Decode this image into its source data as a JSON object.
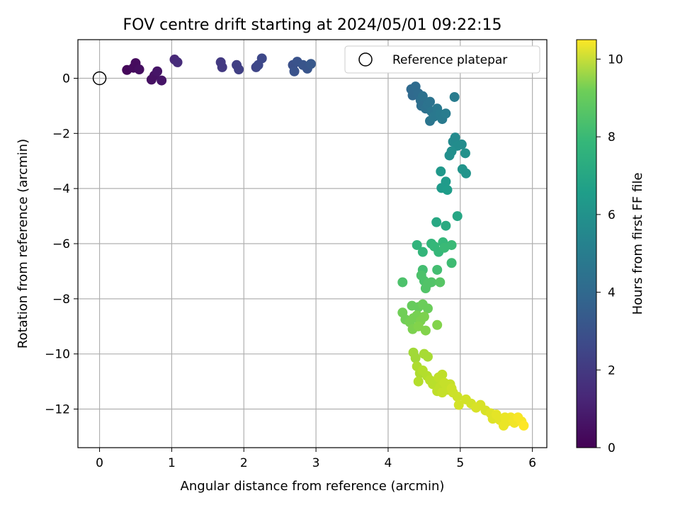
{
  "chart_data": {
    "type": "scatter",
    "title": "FOV centre drift starting at 2024/05/01 09:22:15",
    "xlabel": "Angular distance from reference (arcmin)",
    "ylabel": "Rotation from reference (arcmin)",
    "xlim": [
      -0.3,
      6.2
    ],
    "ylim": [
      -13.4,
      1.4
    ],
    "x_ticks": [
      0,
      1,
      2,
      3,
      4,
      5,
      6
    ],
    "y_ticks": [
      0,
      -2,
      -4,
      -6,
      -8,
      -10,
      -12
    ],
    "x_tick_labels": [
      "0",
      "1",
      "2",
      "3",
      "4",
      "5",
      "6"
    ],
    "y_tick_labels": [
      "0",
      "−2",
      "−4",
      "−6",
      "−8",
      "−10",
      "−12"
    ],
    "grid": true,
    "legend": {
      "placement": "top-right",
      "entries": [
        "Reference platepar"
      ]
    },
    "reference_point": {
      "x": 0,
      "y": 0
    },
    "colorbar": {
      "label": "Hours from first FF file",
      "range": [
        0,
        10.5
      ],
      "ticks": [
        0,
        2,
        4,
        6,
        8,
        10
      ],
      "colormap": "viridis"
    },
    "points": [
      {
        "x": 0.38,
        "y": 0.3,
        "c": 0.2
      },
      {
        "x": 0.47,
        "y": 0.38,
        "c": 0.3
      },
      {
        "x": 0.5,
        "y": 0.55,
        "c": 0.3
      },
      {
        "x": 0.55,
        "y": 0.32,
        "c": 0.4
      },
      {
        "x": 0.72,
        "y": -0.05,
        "c": 0.5
      },
      {
        "x": 0.76,
        "y": 0.1,
        "c": 0.5
      },
      {
        "x": 0.8,
        "y": 0.25,
        "c": 0.6
      },
      {
        "x": 0.86,
        "y": -0.08,
        "c": 0.6
      },
      {
        "x": 1.04,
        "y": 0.68,
        "c": 1.2
      },
      {
        "x": 1.08,
        "y": 0.58,
        "c": 1.3
      },
      {
        "x": 1.68,
        "y": 0.58,
        "c": 1.8
      },
      {
        "x": 1.7,
        "y": 0.4,
        "c": 1.8
      },
      {
        "x": 1.9,
        "y": 0.48,
        "c": 2.0
      },
      {
        "x": 1.93,
        "y": 0.32,
        "c": 2.0
      },
      {
        "x": 2.17,
        "y": 0.4,
        "c": 2.2
      },
      {
        "x": 2.2,
        "y": 0.48,
        "c": 2.3
      },
      {
        "x": 2.25,
        "y": 0.72,
        "c": 2.3
      },
      {
        "x": 2.68,
        "y": 0.48,
        "c": 2.6
      },
      {
        "x": 2.7,
        "y": 0.25,
        "c": 2.7
      },
      {
        "x": 2.74,
        "y": 0.6,
        "c": 2.7
      },
      {
        "x": 2.82,
        "y": 0.48,
        "c": 2.8
      },
      {
        "x": 2.88,
        "y": 0.35,
        "c": 2.8
      },
      {
        "x": 2.93,
        "y": 0.52,
        "c": 2.9
      },
      {
        "x": 4.32,
        "y": -0.4,
        "c": 3.6
      },
      {
        "x": 4.34,
        "y": -0.62,
        "c": 3.6
      },
      {
        "x": 4.38,
        "y": -0.3,
        "c": 3.7
      },
      {
        "x": 4.42,
        "y": -0.55,
        "c": 3.7
      },
      {
        "x": 4.45,
        "y": -0.8,
        "c": 3.8
      },
      {
        "x": 4.46,
        "y": -1.0,
        "c": 3.8
      },
      {
        "x": 4.48,
        "y": -0.65,
        "c": 3.9
      },
      {
        "x": 4.52,
        "y": -1.1,
        "c": 3.9
      },
      {
        "x": 4.55,
        "y": -0.95,
        "c": 4.0
      },
      {
        "x": 4.58,
        "y": -0.85,
        "c": 4.0
      },
      {
        "x": 4.6,
        "y": -1.2,
        "c": 4.1
      },
      {
        "x": 4.58,
        "y": -1.55,
        "c": 4.1
      },
      {
        "x": 4.63,
        "y": -1.4,
        "c": 4.2
      },
      {
        "x": 4.68,
        "y": -1.1,
        "c": 4.2
      },
      {
        "x": 4.72,
        "y": -1.3,
        "c": 4.3
      },
      {
        "x": 4.75,
        "y": -1.48,
        "c": 4.3
      },
      {
        "x": 4.8,
        "y": -1.28,
        "c": 4.4
      },
      {
        "x": 4.92,
        "y": -0.68,
        "c": 4.4
      },
      {
        "x": 4.9,
        "y": -2.3,
        "c": 5.0
      },
      {
        "x": 4.93,
        "y": -2.15,
        "c": 5.0
      },
      {
        "x": 4.96,
        "y": -2.45,
        "c": 5.1
      },
      {
        "x": 5.02,
        "y": -2.4,
        "c": 5.1
      },
      {
        "x": 4.88,
        "y": -2.65,
        "c": 5.2
      },
      {
        "x": 4.85,
        "y": -2.8,
        "c": 5.2
      },
      {
        "x": 5.07,
        "y": -2.72,
        "c": 5.3
      },
      {
        "x": 5.03,
        "y": -3.3,
        "c": 5.4
      },
      {
        "x": 5.08,
        "y": -3.45,
        "c": 5.4
      },
      {
        "x": 4.73,
        "y": -3.38,
        "c": 5.6
      },
      {
        "x": 4.8,
        "y": -3.75,
        "c": 5.7
      },
      {
        "x": 4.74,
        "y": -3.98,
        "c": 5.7
      },
      {
        "x": 4.82,
        "y": -4.05,
        "c": 5.8
      },
      {
        "x": 4.96,
        "y": -5.0,
        "c": 6.2
      },
      {
        "x": 4.67,
        "y": -5.22,
        "c": 6.3
      },
      {
        "x": 4.8,
        "y": -5.35,
        "c": 6.4
      },
      {
        "x": 4.4,
        "y": -6.05,
        "c": 6.8
      },
      {
        "x": 4.48,
        "y": -6.3,
        "c": 6.9
      },
      {
        "x": 4.6,
        "y": -6.0,
        "c": 6.9
      },
      {
        "x": 4.64,
        "y": -6.1,
        "c": 7.0
      },
      {
        "x": 4.7,
        "y": -6.3,
        "c": 7.0
      },
      {
        "x": 4.76,
        "y": -5.95,
        "c": 7.0
      },
      {
        "x": 4.78,
        "y": -6.15,
        "c": 7.1
      },
      {
        "x": 4.88,
        "y": -6.05,
        "c": 7.1
      },
      {
        "x": 4.88,
        "y": -6.7,
        "c": 7.2
      },
      {
        "x": 4.48,
        "y": -6.95,
        "c": 7.3
      },
      {
        "x": 4.68,
        "y": -6.95,
        "c": 7.3
      },
      {
        "x": 4.2,
        "y": -7.4,
        "c": 7.5
      },
      {
        "x": 4.46,
        "y": -7.15,
        "c": 7.5
      },
      {
        "x": 4.5,
        "y": -7.35,
        "c": 7.5
      },
      {
        "x": 4.55,
        "y": -7.45,
        "c": 7.6
      },
      {
        "x": 4.6,
        "y": -7.4,
        "c": 7.6
      },
      {
        "x": 4.52,
        "y": -7.62,
        "c": 7.6
      },
      {
        "x": 4.72,
        "y": -7.4,
        "c": 7.7
      },
      {
        "x": 4.33,
        "y": -8.25,
        "c": 8.0
      },
      {
        "x": 4.42,
        "y": -8.3,
        "c": 8.0
      },
      {
        "x": 4.48,
        "y": -8.2,
        "c": 8.1
      },
      {
        "x": 4.55,
        "y": -8.35,
        "c": 8.1
      },
      {
        "x": 4.2,
        "y": -8.5,
        "c": 8.2
      },
      {
        "x": 4.24,
        "y": -8.75,
        "c": 8.2
      },
      {
        "x": 4.3,
        "y": -8.85,
        "c": 8.3
      },
      {
        "x": 4.35,
        "y": -8.7,
        "c": 8.3
      },
      {
        "x": 4.4,
        "y": -8.6,
        "c": 8.3
      },
      {
        "x": 4.45,
        "y": -8.8,
        "c": 8.4
      },
      {
        "x": 4.5,
        "y": -8.65,
        "c": 8.4
      },
      {
        "x": 4.34,
        "y": -9.1,
        "c": 8.4
      },
      {
        "x": 4.42,
        "y": -9.0,
        "c": 8.5
      },
      {
        "x": 4.52,
        "y": -9.15,
        "c": 8.5
      },
      {
        "x": 4.68,
        "y": -8.95,
        "c": 8.5
      },
      {
        "x": 4.35,
        "y": -9.95,
        "c": 9.0
      },
      {
        "x": 4.38,
        "y": -10.15,
        "c": 9.0
      },
      {
        "x": 4.5,
        "y": -10.0,
        "c": 9.1
      },
      {
        "x": 4.55,
        "y": -10.1,
        "c": 9.1
      },
      {
        "x": 4.4,
        "y": -10.45,
        "c": 9.2
      },
      {
        "x": 4.44,
        "y": -10.7,
        "c": 9.2
      },
      {
        "x": 4.48,
        "y": -10.6,
        "c": 9.3
      },
      {
        "x": 4.54,
        "y": -10.8,
        "c": 9.3
      },
      {
        "x": 4.42,
        "y": -11.0,
        "c": 9.3
      },
      {
        "x": 4.58,
        "y": -10.95,
        "c": 9.4
      },
      {
        "x": 4.62,
        "y": -11.1,
        "c": 9.4
      },
      {
        "x": 4.66,
        "y": -11.0,
        "c": 9.4
      },
      {
        "x": 4.7,
        "y": -10.85,
        "c": 9.5
      },
      {
        "x": 4.72,
        "y": -11.2,
        "c": 9.5
      },
      {
        "x": 4.68,
        "y": -11.35,
        "c": 9.5
      },
      {
        "x": 4.75,
        "y": -10.75,
        "c": 9.5
      },
      {
        "x": 4.78,
        "y": -11.05,
        "c": 9.6
      },
      {
        "x": 4.75,
        "y": -11.4,
        "c": 9.6
      },
      {
        "x": 4.82,
        "y": -11.3,
        "c": 9.6
      },
      {
        "x": 4.86,
        "y": -11.1,
        "c": 9.6
      },
      {
        "x": 4.88,
        "y": -11.25,
        "c": 9.7
      },
      {
        "x": 4.9,
        "y": -11.4,
        "c": 9.7
      },
      {
        "x": 4.96,
        "y": -11.55,
        "c": 9.7
      },
      {
        "x": 4.98,
        "y": -11.85,
        "c": 9.8
      },
      {
        "x": 5.08,
        "y": -11.65,
        "c": 9.8
      },
      {
        "x": 5.15,
        "y": -11.8,
        "c": 9.8
      },
      {
        "x": 5.22,
        "y": -11.95,
        "c": 9.9
      },
      {
        "x": 5.28,
        "y": -11.85,
        "c": 9.9
      },
      {
        "x": 5.35,
        "y": -12.05,
        "c": 9.9
      },
      {
        "x": 5.42,
        "y": -12.15,
        "c": 10.0
      },
      {
        "x": 5.45,
        "y": -12.35,
        "c": 10.0
      },
      {
        "x": 5.5,
        "y": -12.2,
        "c": 10.1
      },
      {
        "x": 5.55,
        "y": -12.4,
        "c": 10.1
      },
      {
        "x": 5.6,
        "y": -12.6,
        "c": 10.2
      },
      {
        "x": 5.65,
        "y": -12.45,
        "c": 10.2
      },
      {
        "x": 5.7,
        "y": -12.3,
        "c": 10.3
      },
      {
        "x": 5.75,
        "y": -12.5,
        "c": 10.3
      },
      {
        "x": 5.8,
        "y": -12.3,
        "c": 10.4
      },
      {
        "x": 5.85,
        "y": -12.45,
        "c": 10.4
      },
      {
        "x": 5.88,
        "y": -12.6,
        "c": 10.5
      },
      {
        "x": 5.62,
        "y": -12.3,
        "c": 10.2
      }
    ]
  }
}
